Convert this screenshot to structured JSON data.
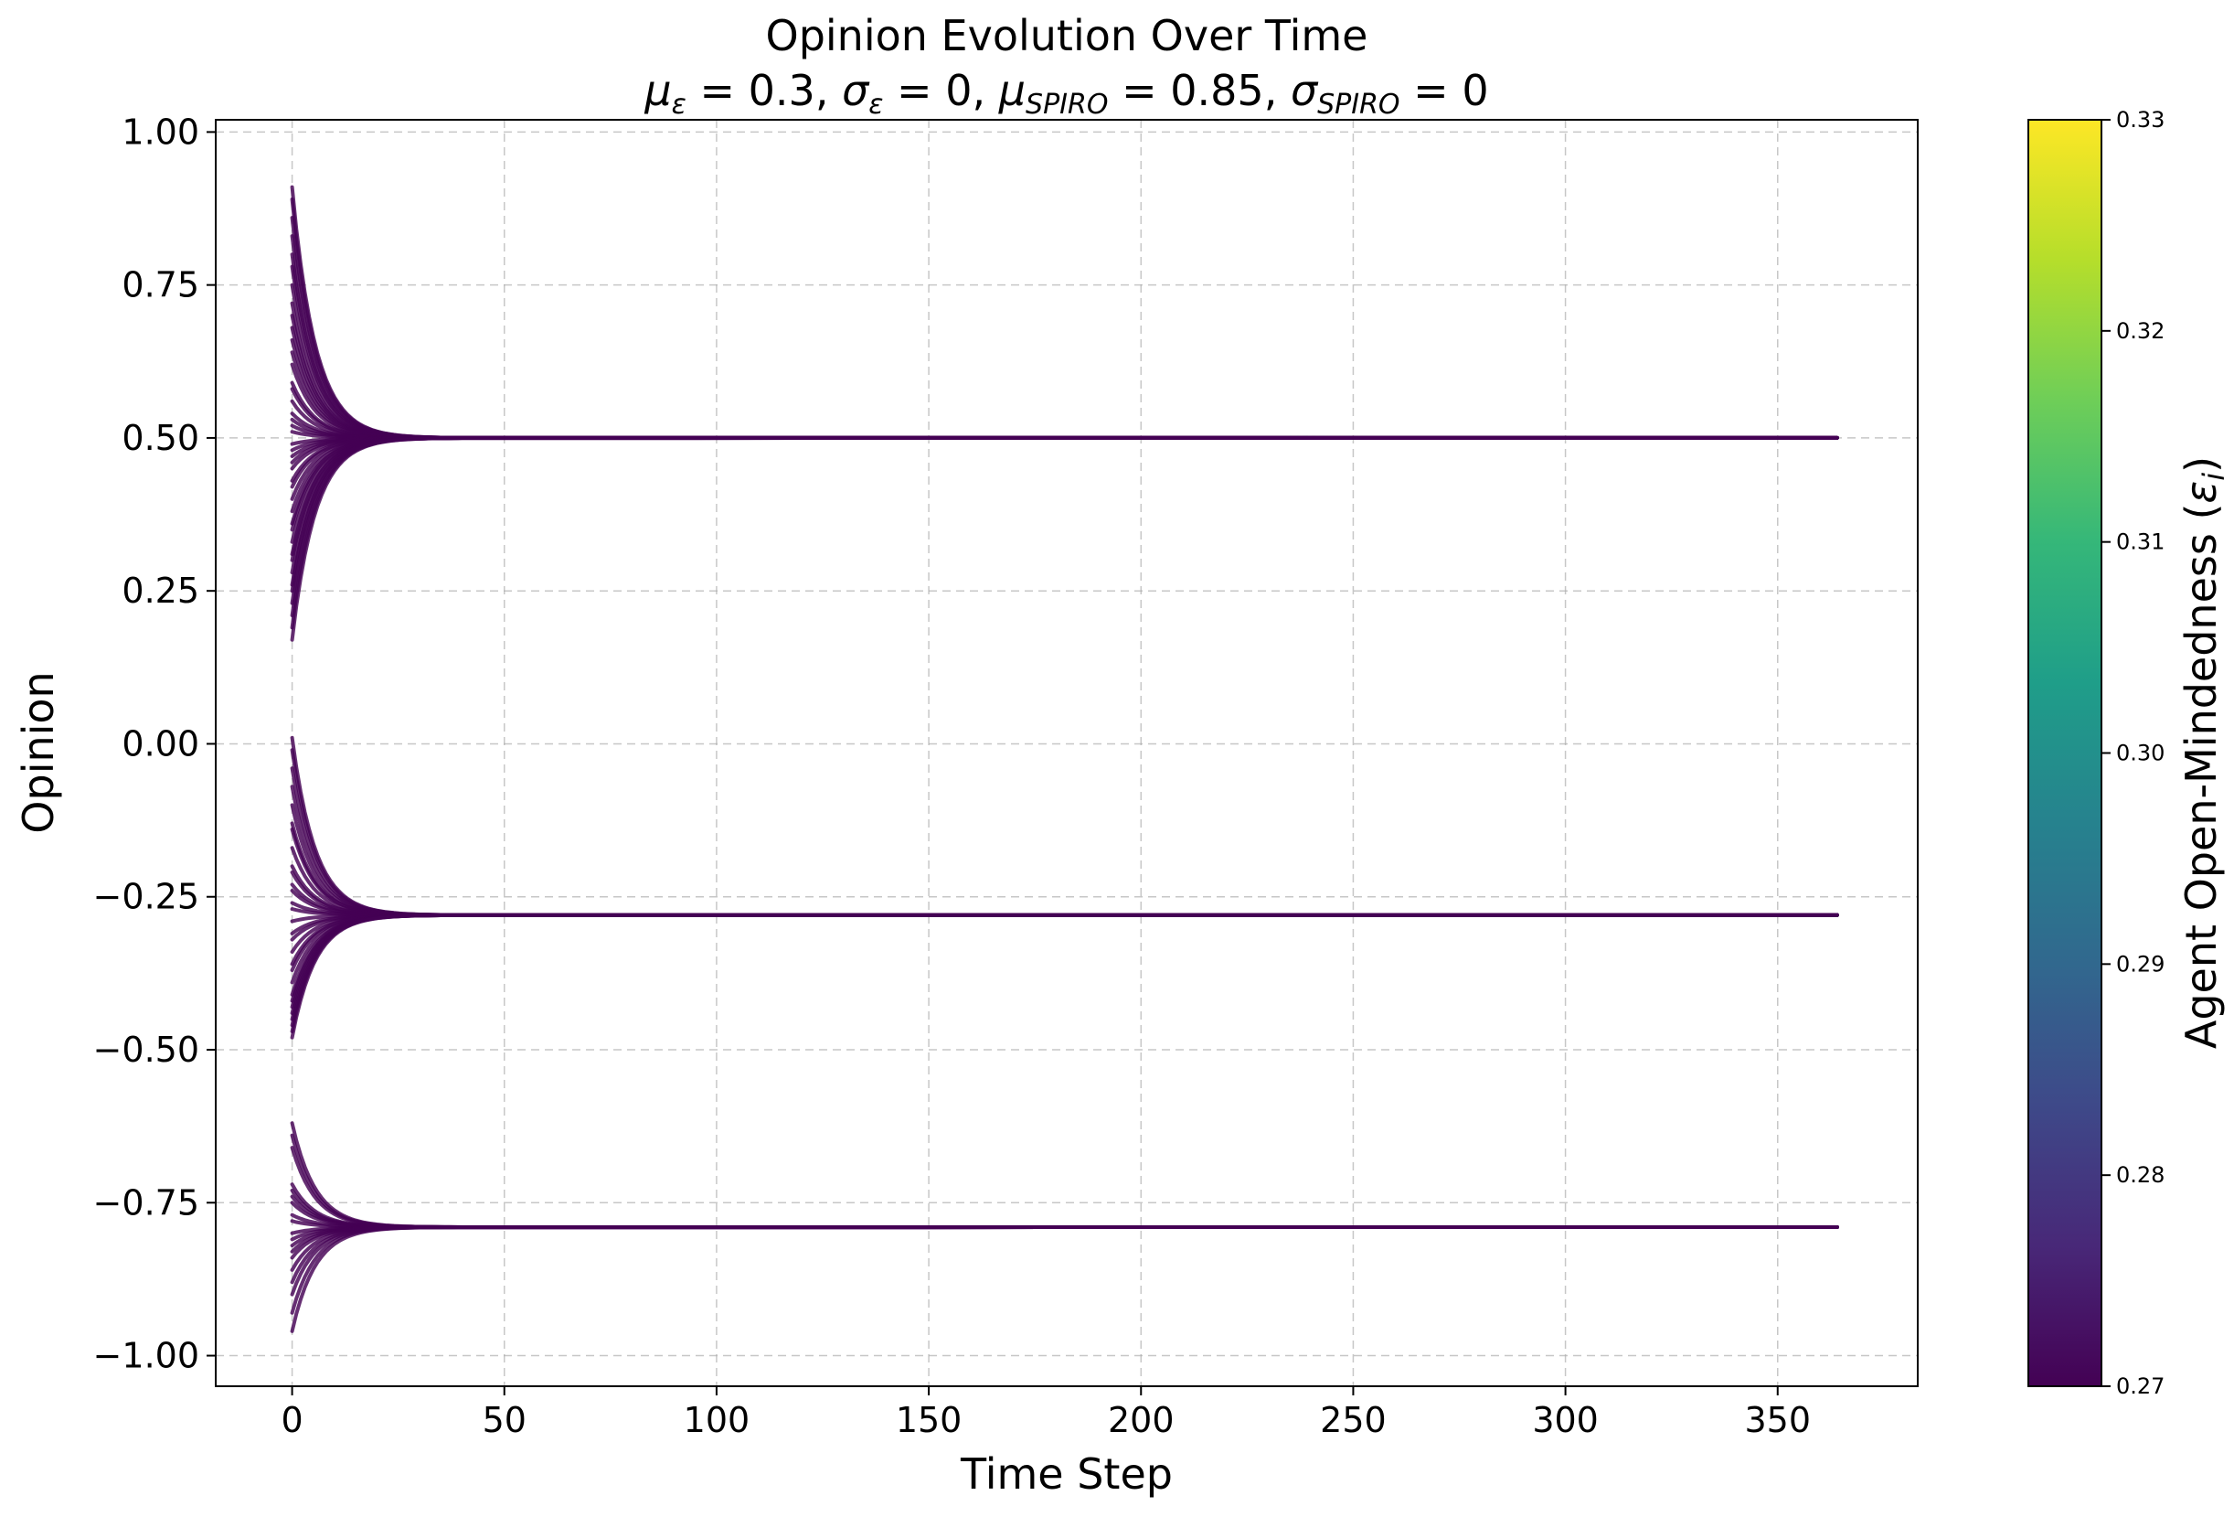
{
  "chart_data": {
    "type": "line",
    "title": "Opinion Evolution Over Time",
    "subtitle": {
      "mu_eps_sym": "μ",
      "mu_eps_sub": "ε",
      "mu_eps_val": " = 0.3, ",
      "sig_eps_sym": "σ",
      "sig_eps_sub": "ε",
      "sig_eps_val": " = 0, ",
      "mu_spiro_sym": "μ",
      "mu_spiro_sub": "SPIRO",
      "mu_spiro_val": " = 0.85, ",
      "sig_spiro_sym": "σ",
      "sig_spiro_sub": "SPIRO",
      "sig_spiro_val": " = 0"
    },
    "xlabel": "Time Step",
    "ylabel": "Opinion",
    "xlim": [
      -18,
      383
    ],
    "ylim": [
      -1.05,
      1.02
    ],
    "xticks": [
      0,
      50,
      100,
      150,
      200,
      250,
      300,
      350
    ],
    "xtick_labels": [
      "0",
      "50",
      "100",
      "150",
      "200",
      "250",
      "300",
      "350"
    ],
    "yticks": [
      1.0,
      0.75,
      0.5,
      0.25,
      0.0,
      -0.25,
      -0.5,
      -0.75,
      -1.0
    ],
    "ytick_labels": [
      "1.00",
      "0.75",
      "0.50",
      "0.25",
      "0.00",
      "−0.25",
      "−0.50",
      "−0.75",
      "−1.00"
    ],
    "grid": true,
    "t_end": 364,
    "line_color": "#440154",
    "clusters": [
      {
        "final_opinion": 0.5,
        "initial_opinions": [
          0.91,
          0.89,
          0.86,
          0.83,
          0.8,
          0.78,
          0.75,
          0.72,
          0.7,
          0.68,
          0.66,
          0.64,
          0.62,
          0.59,
          0.58,
          0.56,
          0.54,
          0.53,
          0.52,
          0.51,
          0.49,
          0.48,
          0.47,
          0.46,
          0.45,
          0.43,
          0.42,
          0.4,
          0.38,
          0.36,
          0.35,
          0.33,
          0.31,
          0.3,
          0.28,
          0.26,
          0.25,
          0.23,
          0.21,
          0.19,
          0.17
        ]
      },
      {
        "final_opinion": -0.28,
        "initial_opinions": [
          0.01,
          -0.01,
          -0.04,
          -0.07,
          -0.1,
          -0.13,
          -0.14,
          -0.17,
          -0.2,
          -0.21,
          -0.23,
          -0.24,
          -0.26,
          -0.27,
          -0.29,
          -0.31,
          -0.32,
          -0.34,
          -0.36,
          -0.37,
          -0.39,
          -0.41,
          -0.42,
          -0.43,
          -0.44,
          -0.45,
          -0.46,
          -0.47,
          -0.48
        ]
      },
      {
        "final_opinion": -0.79,
        "initial_opinions": [
          -0.62,
          -0.64,
          -0.66,
          -0.72,
          -0.73,
          -0.74,
          -0.75,
          -0.77,
          -0.78,
          -0.8,
          -0.81,
          -0.82,
          -0.83,
          -0.84,
          -0.86,
          -0.88,
          -0.9,
          -0.93,
          -0.96
        ]
      }
    ],
    "colorbar": {
      "label_text": "Agent Open-Mindedness (",
      "label_sym": "ε",
      "label_sub": "i",
      "label_close": ")",
      "vmin": 0.27,
      "vmax": 0.33,
      "ticks": [
        0.27,
        0.28,
        0.29,
        0.3,
        0.31,
        0.32,
        0.33
      ],
      "tick_labels": [
        "0.27",
        "0.28",
        "0.29",
        "0.30",
        "0.31",
        "0.32",
        "0.33"
      ],
      "colormap": "viridis",
      "colormap_stops": [
        "#440154",
        "#482878",
        "#3e4989",
        "#31688e",
        "#26828e",
        "#1f9e89",
        "#35b779",
        "#6ece58",
        "#b5de2b",
        "#fde725"
      ]
    }
  }
}
